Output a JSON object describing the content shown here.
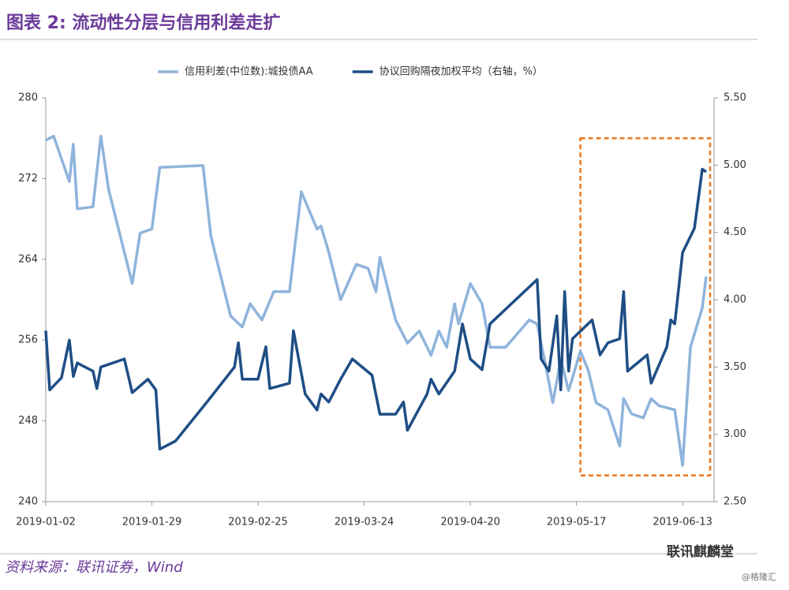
{
  "chart_data": {
    "type": "line",
    "title": "图表 2:  流动性分层与信用利差走扩",
    "source": "资料来源：联讯证券，Wind",
    "watermark": "联讯麒麟堂",
    "credit": "@格隆汇",
    "xlim": [
      "2019-01-02",
      "2019-06-21"
    ],
    "xticks": [
      "2019-01-02",
      "2019-01-29",
      "2019-02-25",
      "2019-03-24",
      "2019-04-20",
      "2019-05-17",
      "2019-06-13"
    ],
    "ylim": [
      240,
      280
    ],
    "yticks": [
      240,
      248,
      256,
      264,
      272,
      280
    ],
    "y2lim": [
      2.5,
      5.5
    ],
    "y2ticks": [
      {
        "value": 2.5,
        "label": "2.50"
      },
      {
        "value": 3,
        "label": "3.00"
      },
      {
        "value": 3.5,
        "label": "3.50"
      },
      {
        "value": 4,
        "label": "4.00"
      },
      {
        "value": 4.5,
        "label": "4.50"
      },
      {
        "value": 5,
        "label": "5.00"
      },
      {
        "value": 5.5,
        "label": "5.50"
      }
    ],
    "legend": "top",
    "highlight": {
      "x": [
        "2019-05-18",
        "2019-06-20"
      ],
      "y": [
        276,
        242.6
      ],
      "color": "#e87722"
    },
    "series": [
      {
        "name": "信用利差(中位数):城投债AA",
        "color": "#8fb4dc",
        "axis": "y",
        "x": [
          "2019-01-02",
          "2019-01-04",
          "2019-01-08",
          "2019-01-09",
          "2019-01-10",
          "2019-01-14",
          "2019-01-16",
          "2019-01-18",
          "2019-01-24",
          "2019-01-26",
          "2019-01-29",
          "2019-01-31",
          "2019-02-11",
          "2019-02-13",
          "2019-02-18",
          "2019-02-21",
          "2019-02-23",
          "2019-02-26",
          "2019-03-01",
          "2019-03-05",
          "2019-03-08",
          "2019-03-12",
          "2019-03-13",
          "2019-03-15",
          "2019-03-18",
          "2019-03-22",
          "2019-03-25",
          "2019-03-27",
          "2019-03-28",
          "2019-04-01",
          "2019-04-04",
          "2019-04-07",
          "2019-04-10",
          "2019-04-12",
          "2019-04-14",
          "2019-04-16",
          "2019-04-17",
          "2019-04-20",
          "2019-04-23",
          "2019-04-25",
          "2019-04-29",
          "2019-05-05",
          "2019-05-07",
          "2019-05-09",
          "2019-05-11",
          "2019-05-13",
          "2019-05-15",
          "2019-05-18",
          "2019-05-20",
          "2019-05-22",
          "2019-05-25",
          "2019-05-28",
          "2019-05-29",
          "2019-05-31",
          "2019-06-03",
          "2019-06-05",
          "2019-06-07",
          "2019-06-11",
          "2019-06-13",
          "2019-06-15",
          "2019-06-18",
          "2019-06-19"
        ],
        "values": [
          275.8,
          276.2,
          271.7,
          275.4,
          269.0,
          269.2,
          276.2,
          270.9,
          261.6,
          266.6,
          267.0,
          273.1,
          273.3,
          266.3,
          258.4,
          257.3,
          259.6,
          258.0,
          260.8,
          260.8,
          270.7,
          267.0,
          267.3,
          264.7,
          260.0,
          263.5,
          263.1,
          260.8,
          264.2,
          258.0,
          255.7,
          256.9,
          254.5,
          256.9,
          255.3,
          259.6,
          257.6,
          261.6,
          259.6,
          255.3,
          255.3,
          258.0,
          257.6,
          253.8,
          249.8,
          254.1,
          251.0,
          254.9,
          253.0,
          249.8,
          249.1,
          245.5,
          250.2,
          248.7,
          248.3,
          250.2,
          249.5,
          249.1,
          243.6,
          255.3,
          259.2,
          262.3
        ]
      },
      {
        "name": "协议回购隔夜加权平均（右轴，%）",
        "color": "#1f4e85",
        "axis": "y2",
        "x": [
          "2019-01-02",
          "2019-01-03",
          "2019-01-06",
          "2019-01-08",
          "2019-01-09",
          "2019-01-10",
          "2019-01-14",
          "2019-01-15",
          "2019-01-16",
          "2019-01-22",
          "2019-01-24",
          "2019-01-28",
          "2019-01-30",
          "2019-01-31",
          "2019-02-04",
          "2019-02-12",
          "2019-02-19",
          "2019-02-20",
          "2019-02-21",
          "2019-02-25",
          "2019-02-27",
          "2019-02-28",
          "2019-03-05",
          "2019-03-06",
          "2019-03-09",
          "2019-03-12",
          "2019-03-13",
          "2019-03-15",
          "2019-03-18",
          "2019-03-21",
          "2019-03-26",
          "2019-03-28",
          "2019-04-01",
          "2019-04-03",
          "2019-04-04",
          "2019-04-09",
          "2019-04-10",
          "2019-04-12",
          "2019-04-16",
          "2019-04-18",
          "2019-04-20",
          "2019-04-23",
          "2019-04-25",
          "2019-05-07",
          "2019-05-08",
          "2019-05-10",
          "2019-05-12",
          "2019-05-13",
          "2019-05-14",
          "2019-05-15",
          "2019-05-16",
          "2019-05-21",
          "2019-05-23",
          "2019-05-25",
          "2019-05-28",
          "2019-05-29",
          "2019-05-30",
          "2019-06-04",
          "2019-06-05",
          "2019-06-09",
          "2019-06-10",
          "2019-06-11",
          "2019-06-13",
          "2019-06-16",
          "2019-06-18",
          "2019-06-19"
        ],
        "values": [
          3.77,
          3.33,
          3.42,
          3.7,
          3.43,
          3.53,
          3.47,
          3.34,
          3.5,
          3.56,
          3.31,
          3.41,
          3.33,
          2.89,
          2.95,
          3.24,
          3.5,
          3.68,
          3.41,
          3.41,
          3.65,
          3.34,
          3.38,
          3.77,
          3.3,
          3.18,
          3.3,
          3.24,
          3.41,
          3.56,
          3.44,
          3.15,
          3.15,
          3.24,
          3.03,
          3.3,
          3.41,
          3.3,
          3.47,
          3.82,
          3.56,
          3.48,
          3.82,
          4.15,
          3.56,
          3.47,
          3.88,
          3.33,
          4.06,
          3.47,
          3.71,
          3.85,
          3.59,
          3.68,
          3.71,
          4.06,
          3.47,
          3.59,
          3.38,
          3.65,
          3.85,
          3.82,
          4.35,
          4.53,
          4.97,
          4.95
        ]
      }
    ]
  }
}
